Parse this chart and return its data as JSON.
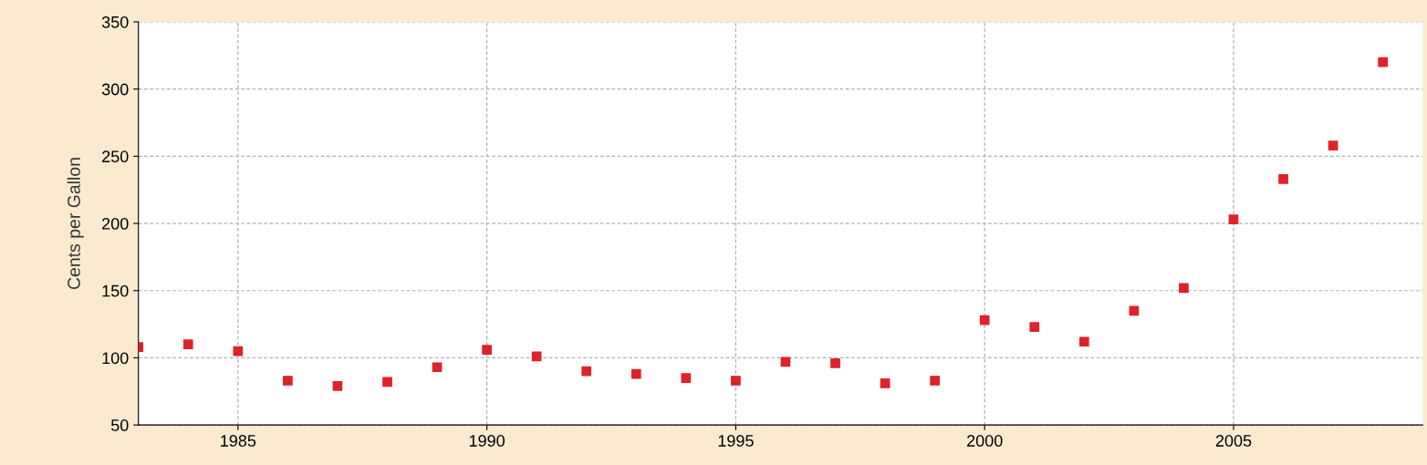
{
  "chart_data": {
    "type": "scatter",
    "ylabel": "Cents per Gallon",
    "x": [
      1983,
      1984,
      1985,
      1986,
      1987,
      1988,
      1989,
      1990,
      1991,
      1992,
      1993,
      1994,
      1995,
      1996,
      1997,
      1998,
      1999,
      2000,
      2001,
      2002,
      2003,
      2004,
      2005,
      2006,
      2007,
      2008
    ],
    "series": [
      {
        "color": "#e0202a",
        "values": [
          108,
          110,
          105,
          83,
          79,
          82,
          93,
          106,
          101,
          90,
          88,
          85,
          83,
          97,
          96,
          81,
          83,
          128,
          123,
          112,
          135,
          152,
          203,
          233,
          258,
          320
        ]
      }
    ],
    "xlim": [
      1983,
      2008.8
    ],
    "xticks": [
      1985,
      1990,
      1995,
      2000,
      2005
    ],
    "ylim": [
      50,
      350
    ],
    "yticks": [
      50,
      100,
      150,
      200,
      250,
      300,
      350
    ],
    "grid": true,
    "marker": "square",
    "legend": false
  }
}
